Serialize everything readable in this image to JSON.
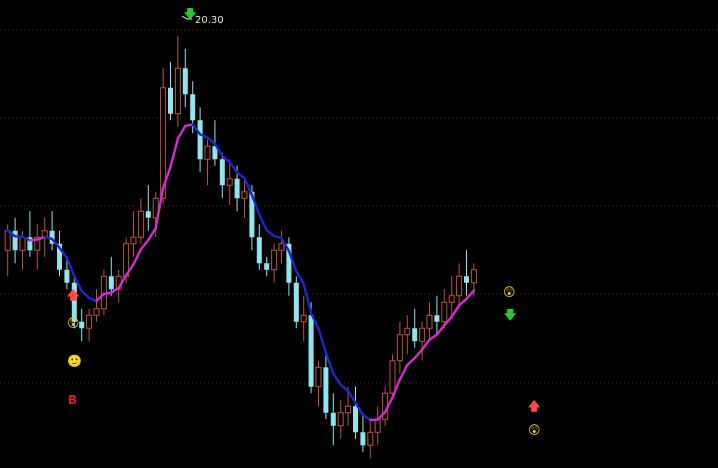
{
  "annotations": {
    "peak_price": "20.30",
    "buy_signal": "B"
  },
  "icons": {
    "surprised_face": "😲",
    "smiling_face": "🙂",
    "down_arrow": "🡇",
    "up_arrow": "🡅"
  },
  "colors": {
    "background": "#000000",
    "up_candle": "#c0503e",
    "down_candle": "#8fe6f0",
    "ma_up": "#d62ad6",
    "ma_down": "#1a28c8",
    "grid": "#6a1a1a",
    "signal_buy": "#d42020",
    "signal_down": "#1fd01f"
  },
  "chart_data": {
    "type": "candlestick",
    "grid": true,
    "overlay": "moving-average",
    "series": [
      {
        "values": [
          [
            17.0,
            17.4,
            16.6,
            17.3
          ],
          [
            17.3,
            17.5,
            16.8,
            17.0
          ],
          [
            17.0,
            17.3,
            16.7,
            17.2
          ],
          [
            17.2,
            17.6,
            16.9,
            17.0
          ],
          [
            17.0,
            17.4,
            16.7,
            17.2
          ],
          [
            17.2,
            17.5,
            16.9,
            17.3
          ],
          [
            17.3,
            17.6,
            17.0,
            17.1
          ],
          [
            17.1,
            17.3,
            16.6,
            16.7
          ],
          [
            16.7,
            16.9,
            16.4,
            16.5
          ],
          [
            16.5,
            16.6,
            15.8,
            15.9
          ]
        ]
      },
      {
        "values": [
          [
            15.9,
            16.1,
            15.6,
            15.8
          ],
          [
            15.8,
            16.1,
            15.6,
            16.0
          ],
          [
            16.0,
            16.4,
            15.9,
            16.1
          ],
          [
            16.1,
            16.7,
            16.0,
            16.6
          ],
          [
            16.6,
            16.9,
            16.3,
            16.4
          ],
          [
            16.4,
            16.7,
            16.2,
            16.6
          ],
          [
            16.6,
            17.2,
            16.5,
            17.1
          ],
          [
            17.1,
            17.6,
            16.9,
            17.2
          ],
          [
            17.2,
            17.8,
            17.1,
            17.6
          ],
          [
            17.6,
            18.0,
            17.3,
            17.5
          ]
        ]
      },
      {
        "values": [
          [
            17.5,
            17.9,
            17.2,
            17.8
          ],
          [
            17.8,
            19.8,
            17.7,
            19.5
          ],
          [
            19.5,
            19.9,
            19.0,
            19.1
          ],
          [
            19.1,
            20.3,
            18.9,
            19.8
          ],
          [
            19.8,
            20.1,
            19.2,
            19.4
          ],
          [
            19.4,
            19.6,
            18.8,
            19.0
          ],
          [
            19.0,
            19.2,
            18.2,
            18.4
          ],
          [
            18.4,
            18.7,
            18.0,
            18.6
          ],
          [
            18.6,
            19.0,
            18.3,
            18.4
          ],
          [
            18.4,
            18.5,
            17.8,
            18.0
          ]
        ]
      },
      {
        "values": [
          [
            18.0,
            18.4,
            17.7,
            18.1
          ],
          [
            18.1,
            18.3,
            17.6,
            17.8
          ],
          [
            17.8,
            18.1,
            17.5,
            17.9
          ],
          [
            17.9,
            18.0,
            17.0,
            17.2
          ],
          [
            17.2,
            17.4,
            16.7,
            16.8
          ],
          [
            16.8,
            16.9,
            16.6,
            16.7
          ],
          [
            16.7,
            17.1,
            16.5,
            17.0
          ],
          [
            17.0,
            17.3,
            16.8,
            17.1
          ],
          [
            17.1,
            17.2,
            16.3,
            16.5
          ],
          [
            16.5,
            16.6,
            15.8,
            15.9
          ]
        ]
      },
      {
        "values": [
          [
            15.9,
            16.3,
            15.6,
            16.0
          ],
          [
            16.0,
            16.2,
            14.8,
            14.9
          ],
          [
            14.9,
            15.3,
            14.6,
            15.2
          ],
          [
            15.2,
            15.4,
            14.4,
            14.5
          ],
          [
            14.5,
            14.8,
            14.0,
            14.3
          ],
          [
            14.3,
            14.7,
            14.1,
            14.5
          ],
          [
            14.5,
            14.9,
            14.3,
            14.6
          ],
          [
            14.6,
            14.9,
            14.1,
            14.2
          ],
          [
            14.2,
            14.5,
            13.9,
            14.0
          ],
          [
            14.0,
            14.4,
            13.8,
            14.2
          ]
        ]
      },
      {
        "values": [
          [
            14.2,
            14.6,
            14.0,
            14.4
          ],
          [
            14.4,
            14.9,
            14.3,
            14.8
          ],
          [
            14.8,
            15.4,
            14.7,
            15.3
          ],
          [
            15.3,
            15.9,
            15.1,
            15.7
          ],
          [
            15.7,
            16.0,
            15.4,
            15.8
          ],
          [
            15.8,
            16.1,
            15.5,
            15.6
          ],
          [
            15.6,
            15.9,
            15.3,
            15.8
          ],
          [
            15.8,
            16.2,
            15.6,
            16.0
          ],
          [
            16.0,
            16.3,
            15.7,
            15.9
          ],
          [
            15.9,
            16.4,
            15.8,
            16.2
          ]
        ]
      },
      {
        "values": [
          [
            16.2,
            16.6,
            16.0,
            16.3
          ],
          [
            16.3,
            16.8,
            16.1,
            16.6
          ],
          [
            16.6,
            17.0,
            16.3,
            16.5
          ],
          [
            16.5,
            16.8,
            16.3,
            16.7
          ]
        ]
      }
    ]
  }
}
